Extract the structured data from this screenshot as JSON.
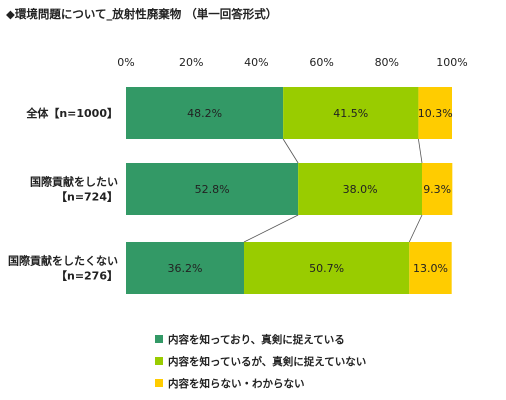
{
  "title": "◆環境問題について_放射性廃棄物 （単一回答形式）",
  "chart_data": {
    "type": "bar",
    "orientation": "horizontal",
    "stacked": true,
    "xlim": [
      0,
      100
    ],
    "xticks": [
      "0%",
      "20%",
      "40%",
      "60%",
      "80%",
      "100%"
    ],
    "categories": [
      {
        "label": "全体【n=1000】"
      },
      {
        "label": "国際貢献をしたい\n【n=724】"
      },
      {
        "label": "国際貢献をしたくない\n【n=276】"
      }
    ],
    "series": [
      {
        "name": "内容を知っており、真剣に捉えている",
        "color": "#339966",
        "values": [
          48.2,
          52.8,
          36.2
        ],
        "labels": [
          "48.2%",
          "52.8%",
          "36.2%"
        ]
      },
      {
        "name": "内容を知っているが、真剣に捉えていない",
        "color": "#99cc00",
        "values": [
          41.5,
          38.0,
          50.7
        ],
        "labels": [
          "41.5%",
          "38.0%",
          "50.7%"
        ]
      },
      {
        "name": "内容を知らない・わからない",
        "color": "#ffcc00",
        "values": [
          10.3,
          9.3,
          13.0
        ],
        "labels": [
          "10.3%",
          "9.3%",
          "13.0%"
        ]
      }
    ],
    "legend_position": "bottom",
    "connector_lines": true,
    "grid": false
  }
}
